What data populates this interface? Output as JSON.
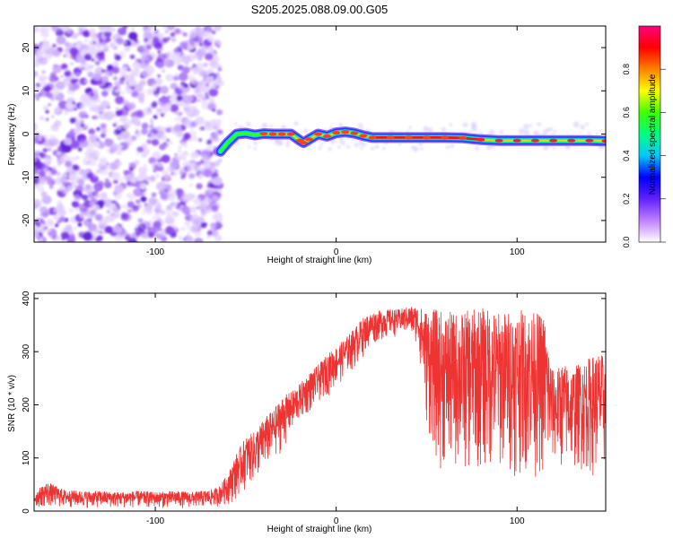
{
  "chart_data": [
    {
      "type": "heatmap",
      "title": "S205.2025.088.09.00.G05",
      "xlabel": "Height of straight line (km)",
      "ylabel": "Frequency (Hz)",
      "xlim": [
        -167,
        149
      ],
      "ylim": [
        -25,
        25
      ],
      "x_ticks": [
        -100,
        0,
        100
      ],
      "y_ticks": [
        -20,
        -10,
        0,
        10,
        20
      ],
      "x_tick_labels": [
        "-100",
        "0",
        "100"
      ],
      "y_tick_labels": [
        "-20",
        "-10",
        "0",
        "10",
        "20"
      ],
      "noise_region_x": [
        -167,
        -64
      ],
      "signal_ridge": {
        "x": [
          -64,
          -60,
          -55,
          -50,
          -45,
          -40,
          -35,
          -30,
          -25,
          -20,
          -18,
          -15,
          -10,
          -5,
          0,
          5,
          10,
          15,
          20,
          30,
          40,
          50,
          60,
          70,
          80,
          90,
          100,
          110,
          120,
          130,
          140,
          149
        ],
        "freq": [
          -4,
          -2,
          0,
          0.2,
          -0.2,
          0.1,
          0,
          0,
          0,
          -1.5,
          -2,
          -1.2,
          0,
          -0.5,
          0.3,
          0.5,
          0.2,
          -0.4,
          -0.8,
          -0.8,
          -0.8,
          -0.8,
          -0.8,
          -0.9,
          -1.3,
          -1.5,
          -1.5,
          -1.5,
          -1.5,
          -1.5,
          -1.5,
          -1.6
        ]
      },
      "colorbar": {
        "label": "Normalized spectral amplitude",
        "ticks": [
          0.0,
          0.2,
          0.4,
          0.6,
          0.8
        ],
        "tick_labels": [
          "0.0",
          "0.2",
          "0.4",
          "0.6",
          "0.8"
        ],
        "colormap": [
          "#ffffff",
          "#c080ff",
          "#6020ff",
          "#0000ff",
          "#00c8ff",
          "#00ff80",
          "#40ff00",
          "#ffff00",
          "#ff8000",
          "#ff0000",
          "#ff0080"
        ]
      }
    },
    {
      "type": "line",
      "xlabel": "Height of straight line (km)",
      "ylabel": "SNR (10 * v/v)",
      "xlim": [
        -167,
        149
      ],
      "ylim": [
        0,
        410
      ],
      "x_ticks": [
        -100,
        0,
        100
      ],
      "y_ticks": [
        0,
        100,
        200,
        300,
        400
      ],
      "x_tick_labels": [
        "-100",
        "0",
        "100"
      ],
      "y_tick_labels": [
        "0",
        "100",
        "200",
        "300",
        "400"
      ],
      "color": "#ee3333",
      "series": [
        {
          "envelope_x": [
            -167,
            -160,
            -150,
            -140,
            -130,
            -120,
            -110,
            -100,
            -90,
            -80,
            -70,
            -65,
            -60,
            -55,
            -50,
            -45,
            -40,
            -35,
            -30,
            -25,
            -20,
            -15,
            -10,
            -5,
            0,
            5,
            10,
            15,
            20,
            25,
            30,
            35,
            40,
            45,
            50,
            55,
            60,
            70,
            80,
            90,
            100,
            110,
            115,
            118,
            120,
            125,
            130,
            135,
            140,
            145,
            149
          ],
          "upper": [
            35,
            55,
            40,
            38,
            38,
            36,
            38,
            36,
            38,
            36,
            40,
            45,
            70,
            110,
            140,
            150,
            175,
            190,
            215,
            225,
            240,
            260,
            275,
            295,
            310,
            325,
            345,
            365,
            375,
            378,
            380,
            380,
            385,
            385,
            380,
            380,
            375,
            375,
            385,
            375,
            380,
            375,
            370,
            300,
            260,
            280,
            270,
            280,
            290,
            300,
            290
          ],
          "lower": [
            5,
            5,
            5,
            5,
            5,
            5,
            5,
            5,
            5,
            5,
            5,
            8,
            10,
            20,
            40,
            50,
            70,
            90,
            110,
            140,
            165,
            180,
            200,
            215,
            230,
            250,
            265,
            290,
            310,
            320,
            325,
            330,
            330,
            310,
            150,
            80,
            60,
            60,
            60,
            60,
            60,
            60,
            40,
            50,
            80,
            70,
            70,
            70,
            60,
            60,
            60
          ]
        }
      ]
    }
  ]
}
